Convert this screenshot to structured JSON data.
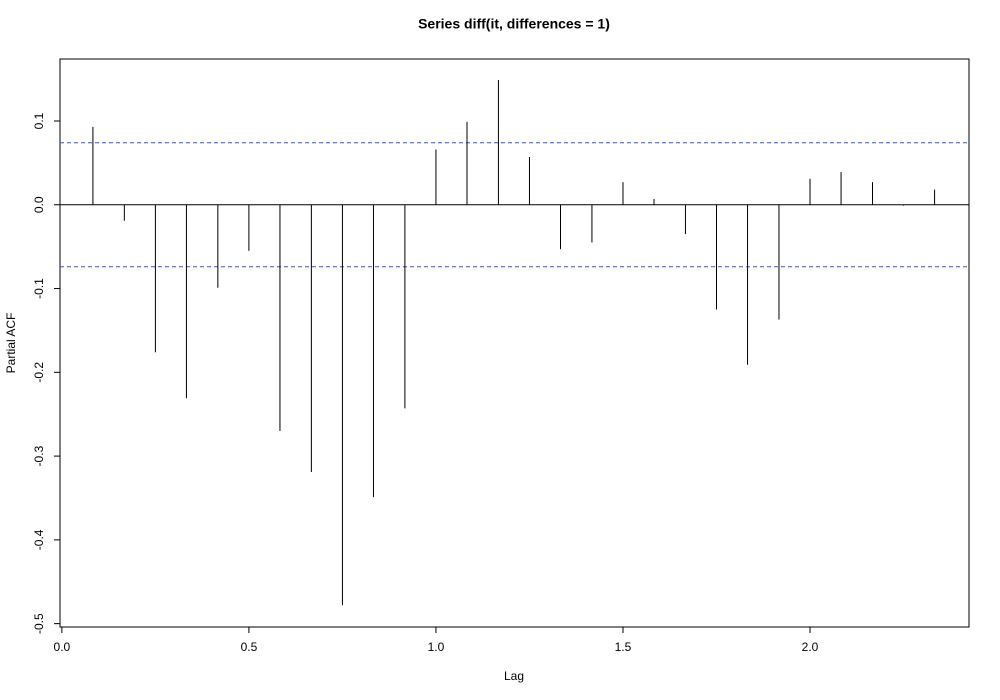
{
  "chart_data": {
    "type": "stem",
    "title": "Series  diff(it, differences = 1)",
    "x_label": "Lag",
    "y_label": "Partial ACF",
    "x": [
      0.083,
      0.167,
      0.25,
      0.333,
      0.417,
      0.5,
      0.583,
      0.667,
      0.75,
      0.833,
      0.917,
      1.0,
      1.083,
      1.167,
      1.25,
      1.333,
      1.417,
      1.5,
      1.583,
      1.667,
      1.75,
      1.833,
      1.917,
      2.0,
      2.083,
      2.167,
      2.25,
      2.333
    ],
    "values": [
      0.093,
      -0.019,
      -0.176,
      -0.231,
      -0.099,
      -0.055,
      -0.27,
      -0.319,
      -0.478,
      -0.349,
      -0.243,
      0.066,
      0.099,
      0.149,
      0.057,
      -0.053,
      -0.045,
      0.027,
      0.007,
      -0.035,
      -0.125,
      -0.191,
      -0.137,
      0.031,
      0.039,
      0.027,
      -0.001,
      0.018
    ],
    "color": "#000000",
    "confidence_bounds": [
      0.074,
      -0.074
    ],
    "confidence_color": "#3355dd",
    "xlim": [
      -0.005,
      2.425
    ],
    "ylim": [
      -0.504,
      0.174
    ],
    "xticks": [
      {
        "value": 0,
        "label": "0.0"
      },
      0.5,
      {
        "value": 1,
        "label": "1.0"
      },
      1.5,
      {
        "value": 2,
        "label": "2.0"
      }
    ],
    "yticks": [
      {
        "value": -0.5,
        "label": "-0.5"
      },
      -0.4,
      -0.3,
      -0.2,
      -0.1,
      {
        "value": 0,
        "label": "0.0"
      },
      0.1
    ]
  }
}
